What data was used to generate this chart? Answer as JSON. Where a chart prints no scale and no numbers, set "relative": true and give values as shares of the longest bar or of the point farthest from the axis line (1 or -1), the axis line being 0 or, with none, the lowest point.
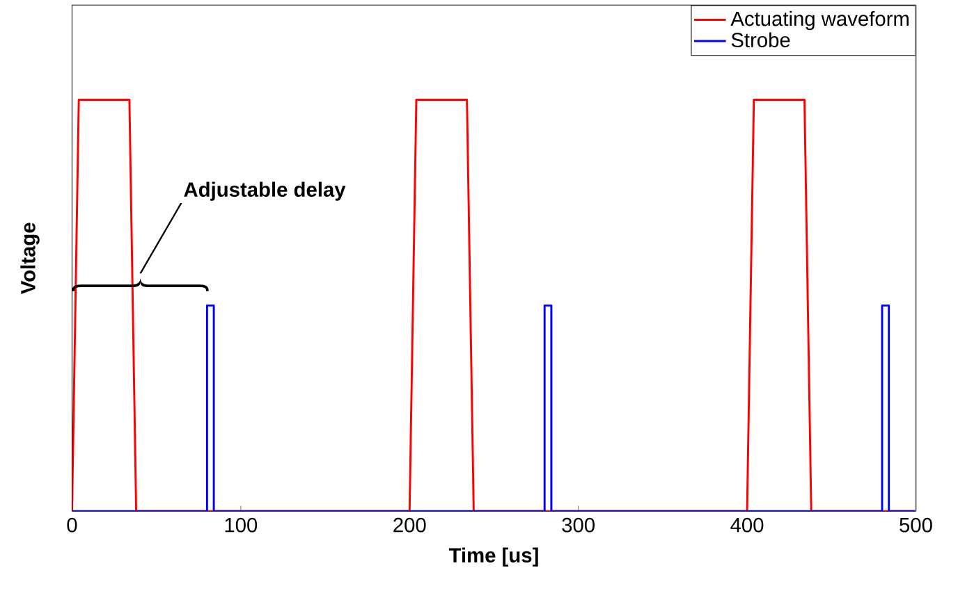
{
  "chart_data": {
    "type": "line",
    "relative": true,
    "xlabel": "Time [us]",
    "ylabel": "Voltage",
    "xlim": [
      0,
      500
    ],
    "xticks": [
      0,
      100,
      200,
      300,
      400,
      500
    ],
    "series": [
      {
        "name": "Actuating waveform",
        "color": "#ff0000",
        "x": [
          0,
          4,
          34,
          38,
          200,
          204,
          234,
          238,
          400,
          404,
          434,
          438,
          500
        ],
        "values": [
          0,
          1,
          1,
          0,
          0,
          1,
          1,
          0,
          0,
          1,
          1,
          0,
          0
        ]
      },
      {
        "name": "Strobe",
        "color": "#0000ff",
        "x": [
          0,
          80,
          80,
          84,
          84,
          280,
          280,
          284,
          284,
          480,
          480,
          484,
          484,
          500
        ],
        "values": [
          0,
          0,
          0.5,
          0.5,
          0,
          0,
          0.5,
          0.5,
          0,
          0,
          0.5,
          0.5,
          0,
          0
        ]
      }
    ],
    "annotations": [
      "Adjustable delay"
    ],
    "legend": "top right",
    "grid": false,
    "marker": "none",
    "line_style": "solid"
  }
}
